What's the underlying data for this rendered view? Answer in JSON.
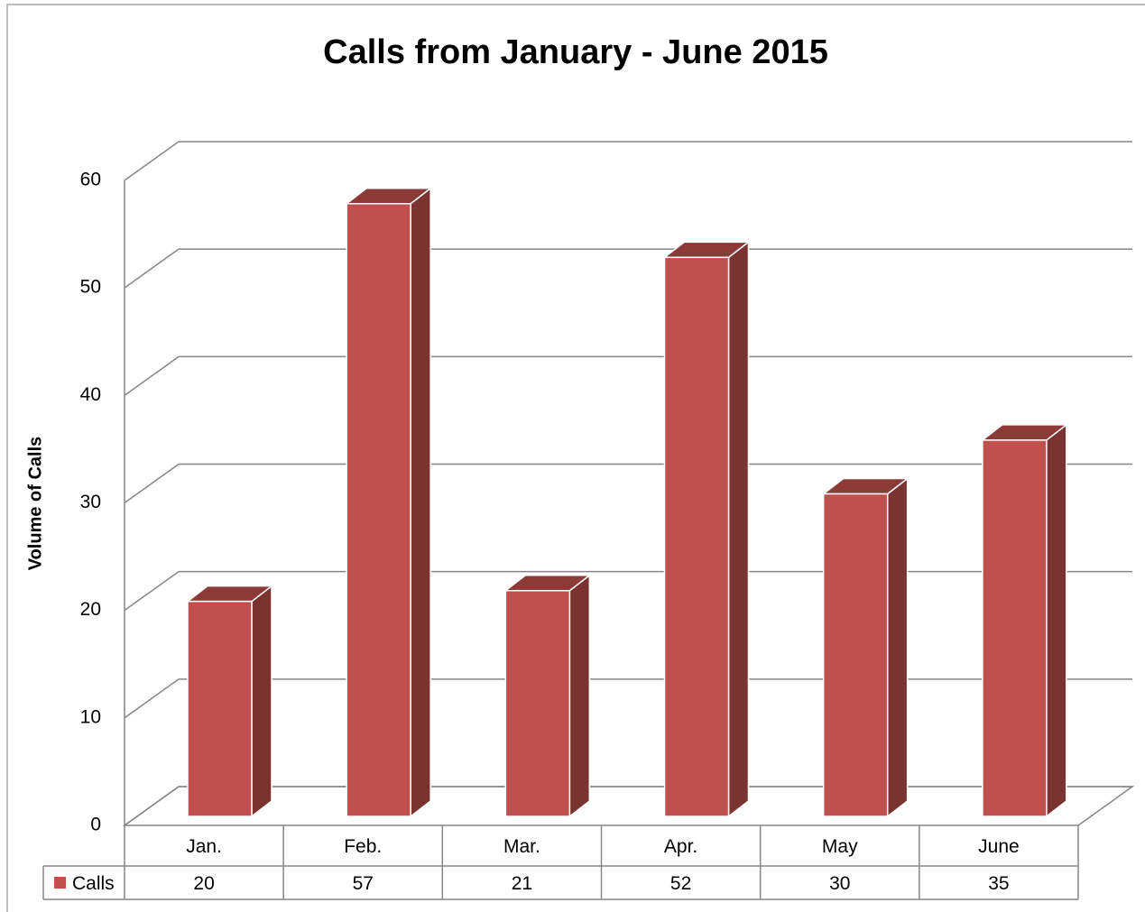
{
  "chart_data": {
    "type": "bar",
    "title": "Calls from January - June 2015",
    "y_label": "Volume of Calls",
    "categories": [
      "Jan.",
      "Feb.",
      "Mar.",
      "Apr.",
      "May",
      "June"
    ],
    "series": [
      {
        "name": "Calls",
        "color": "#c0504d",
        "values": [
          20,
          57,
          21,
          52,
          30,
          35
        ]
      }
    ],
    "ylim": [
      0,
      60
    ],
    "yticks": [
      0,
      10,
      20,
      30,
      40,
      50,
      60
    ],
    "grid": true
  }
}
